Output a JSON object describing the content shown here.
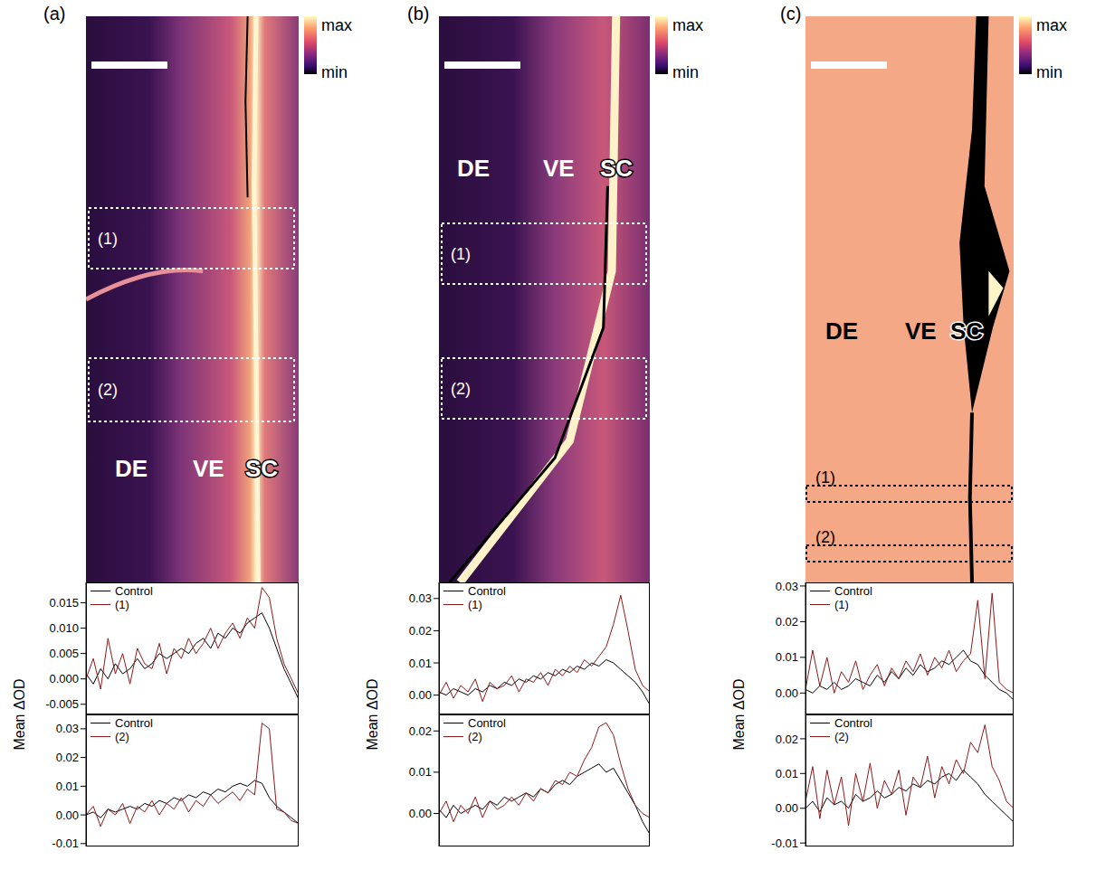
{
  "panels": [
    {
      "label": "(a)",
      "regions": [
        "DE",
        "VE",
        "SC"
      ],
      "boxes": [
        "(1)",
        "(2)"
      ],
      "colorbar": {
        "max": "max",
        "min": "min"
      },
      "y_label": "Mean ΔOD"
    },
    {
      "label": "(b)",
      "regions": [
        "DE",
        "VE",
        "SC"
      ],
      "boxes": [
        "(1)",
        "(2)"
      ],
      "colorbar": {
        "max": "max",
        "min": "min"
      },
      "y_label": "Mean ΔOD"
    },
    {
      "label": "(c)",
      "regions": [
        "DE",
        "VE",
        "SC"
      ],
      "boxes": [
        "(1)",
        "(2)"
      ],
      "colorbar": {
        "max": "max",
        "min": "min"
      },
      "y_label": "Mean ΔOD"
    }
  ],
  "chart_data": [
    {
      "type": "line",
      "x": [
        0,
        1,
        2,
        3,
        4,
        5,
        6,
        7,
        8,
        9,
        10,
        11,
        12,
        13,
        14,
        15,
        16,
        17,
        18,
        19,
        20,
        21,
        22,
        23,
        24,
        25,
        26,
        27,
        28,
        29
      ],
      "xlim": [
        0,
        29
      ],
      "ylim": [
        -0.007,
        0.019
      ],
      "yticks": [
        0.015,
        {
          "value": 0.01,
          "label": "0.010"
        },
        0.005,
        {
          "value": 0,
          "label": "0.000"
        },
        -0.005
      ],
      "tick_labels": "y",
      "legend": "upper left",
      "series": [
        {
          "name": "Control",
          "color": "#000000",
          "values": [
            0.001,
            -0.001,
            0.002,
            0.0,
            0.003,
            0.001,
            0.002,
            0.004,
            0.002,
            0.003,
            0.005,
            0.004,
            0.005,
            0.006,
            0.005,
            0.007,
            0.008,
            0.006,
            0.009,
            0.008,
            0.01,
            0.009,
            0.011,
            0.012,
            0.013,
            0.01,
            0.006,
            0.002,
            -0.001,
            -0.004
          ]
        },
        {
          "name": "(1)",
          "color": "#8b1a1a",
          "values": [
            0.0,
            0.004,
            -0.002,
            0.008,
            0.001,
            0.005,
            -0.001,
            0.006,
            0.003,
            0.002,
            0.007,
            0.001,
            0.006,
            0.004,
            0.008,
            0.005,
            0.007,
            0.01,
            0.006,
            0.009,
            0.011,
            0.008,
            0.012,
            0.01,
            0.018,
            0.016,
            0.008,
            0.003,
            0.0,
            -0.003
          ]
        }
      ]
    },
    {
      "type": "line",
      "x": [
        0,
        1,
        2,
        3,
        4,
        5,
        6,
        7,
        8,
        9,
        10,
        11,
        12,
        13,
        14,
        15,
        16,
        17,
        18,
        19,
        20,
        21,
        22,
        23,
        24,
        25,
        26,
        27,
        28,
        29
      ],
      "xlim": [
        0,
        29
      ],
      "ylim": [
        -0.011,
        0.035
      ],
      "yticks": [
        0.03,
        0.02,
        0.01,
        {
          "value": 0,
          "label": "0.00"
        },
        -0.01
      ],
      "tick_labels": "y",
      "legend": "upper left",
      "series": [
        {
          "name": "Control",
          "color": "#000000",
          "values": [
            0.0,
            0.001,
            -0.001,
            0.002,
            0.001,
            0.002,
            0.003,
            0.002,
            0.004,
            0.003,
            0.005,
            0.004,
            0.006,
            0.005,
            0.007,
            0.006,
            0.008,
            0.007,
            0.009,
            0.008,
            0.01,
            0.011,
            0.01,
            0.012,
            0.011,
            0.006,
            0.003,
            0.001,
            -0.001,
            -0.003
          ]
        },
        {
          "name": "(2)",
          "color": "#8b1a1a",
          "values": [
            0.0,
            0.003,
            -0.004,
            0.002,
            0.0,
            0.004,
            -0.003,
            0.003,
            0.001,
            0.005,
            0.0,
            0.004,
            0.002,
            0.006,
            0.001,
            0.005,
            0.003,
            0.007,
            0.004,
            0.006,
            0.008,
            0.005,
            0.009,
            0.007,
            0.032,
            0.03,
            0.002,
            0.001,
            -0.002,
            -0.003
          ]
        }
      ]
    },
    {
      "type": "line",
      "x": [
        0,
        1,
        2,
        3,
        4,
        5,
        6,
        7,
        8,
        9,
        10,
        11,
        12,
        13,
        14,
        15,
        16,
        17,
        18,
        19,
        20,
        21,
        22,
        23,
        24,
        25,
        26,
        27,
        28,
        29
      ],
      "xlim": [
        0,
        29
      ],
      "ylim": [
        -0.006,
        0.035
      ],
      "yticks": [
        0.03,
        0.02,
        0.01,
        {
          "value": 0,
          "label": "0.00"
        }
      ],
      "tick_labels": "y",
      "legend": "upper left",
      "series": [
        {
          "name": "Control",
          "color": "#000000",
          "values": [
            0.001,
            0.0,
            0.002,
            0.001,
            0.0,
            0.002,
            0.001,
            0.003,
            0.002,
            0.004,
            0.003,
            0.005,
            0.004,
            0.006,
            0.005,
            0.007,
            0.006,
            0.008,
            0.007,
            0.009,
            0.008,
            0.01,
            0.009,
            0.011,
            0.01,
            0.008,
            0.006,
            0.004,
            0.001,
            -0.003
          ]
        },
        {
          "name": "(1)",
          "color": "#8b1a1a",
          "values": [
            0.0,
            0.004,
            -0.001,
            0.003,
            0.001,
            0.005,
            -0.002,
            0.004,
            0.002,
            0.003,
            0.006,
            0.001,
            0.005,
            0.004,
            0.007,
            0.003,
            0.008,
            0.006,
            0.009,
            0.007,
            0.011,
            0.009,
            0.012,
            0.015,
            0.022,
            0.031,
            0.02,
            0.008,
            0.003,
            0.001
          ]
        }
      ]
    },
    {
      "type": "line",
      "x": [
        0,
        1,
        2,
        3,
        4,
        5,
        6,
        7,
        8,
        9,
        10,
        11,
        12,
        13,
        14,
        15,
        16,
        17,
        18,
        19,
        20,
        21,
        22,
        23,
        24,
        25,
        26,
        27,
        28,
        29
      ],
      "xlim": [
        0,
        29
      ],
      "ylim": [
        -0.008,
        0.024
      ],
      "yticks": [
        0.02,
        0.01,
        {
          "value": 0,
          "label": "0.00"
        }
      ],
      "tick_labels": "y",
      "legend": "upper left",
      "series": [
        {
          "name": "Control",
          "color": "#000000",
          "values": [
            0.001,
            -0.001,
            0.002,
            0.0,
            0.001,
            0.002,
            0.001,
            0.003,
            0.002,
            0.004,
            0.003,
            0.004,
            0.005,
            0.004,
            0.006,
            0.005,
            0.007,
            0.008,
            0.007,
            0.009,
            0.01,
            0.011,
            0.012,
            0.01,
            0.011,
            0.008,
            0.005,
            0.002,
            -0.002,
            -0.005
          ]
        },
        {
          "name": "(2)",
          "color": "#8b1a1a",
          "values": [
            0.0,
            0.003,
            -0.002,
            0.002,
            0.0,
            0.004,
            -0.001,
            0.003,
            0.001,
            0.002,
            0.004,
            0.002,
            0.005,
            0.003,
            0.006,
            0.005,
            0.008,
            0.007,
            0.01,
            0.009,
            0.013,
            0.016,
            0.021,
            0.022,
            0.019,
            0.012,
            0.006,
            0.002,
            0.0,
            -0.001
          ]
        }
      ]
    },
    {
      "type": "line",
      "x": [
        0,
        1,
        2,
        3,
        4,
        5,
        6,
        7,
        8,
        9,
        10,
        11,
        12,
        13,
        14,
        15,
        16,
        17,
        18,
        19,
        20,
        21,
        22,
        23,
        24,
        25,
        26,
        27,
        28,
        29
      ],
      "xlim": [
        0,
        29
      ],
      "ylim": [
        -0.006,
        0.031
      ],
      "yticks": [
        0.03,
        0.02,
        0.01,
        {
          "value": 0,
          "label": "0.00"
        }
      ],
      "tick_labels": "y",
      "legend": "upper left",
      "series": [
        {
          "name": "Control",
          "color": "#000000",
          "values": [
            0.001,
            0.0,
            0.002,
            0.001,
            0.003,
            0.001,
            0.002,
            0.004,
            0.003,
            0.002,
            0.005,
            0.003,
            0.006,
            0.004,
            0.007,
            0.005,
            0.008,
            0.006,
            0.007,
            0.009,
            0.008,
            0.01,
            0.012,
            0.009,
            0.008,
            0.005,
            0.003,
            0.001,
            0.0,
            -0.002
          ]
        },
        {
          "name": "(1)",
          "color": "#8b1a1a",
          "values": [
            0.001,
            0.012,
            0.002,
            0.01,
            0.0,
            0.006,
            0.003,
            0.009,
            0.001,
            0.005,
            0.008,
            0.002,
            0.007,
            0.004,
            0.009,
            0.006,
            0.011,
            0.005,
            0.01,
            0.007,
            0.012,
            0.006,
            0.009,
            0.011,
            0.026,
            0.004,
            0.028,
            0.003,
            0.001,
            0.0
          ]
        }
      ]
    },
    {
      "type": "line",
      "x": [
        0,
        1,
        2,
        3,
        4,
        5,
        6,
        7,
        8,
        9,
        10,
        11,
        12,
        13,
        14,
        15,
        16,
        17,
        18,
        19,
        20,
        21,
        22,
        23,
        24,
        25,
        26,
        27,
        28,
        29
      ],
      "xlim": [
        0,
        29
      ],
      "ylim": [
        -0.011,
        0.027
      ],
      "yticks": [
        0.02,
        0.01,
        {
          "value": 0,
          "label": "0.00"
        },
        -0.01
      ],
      "tick_labels": "y",
      "legend": "upper left",
      "series": [
        {
          "name": "Control",
          "color": "#000000",
          "values": [
            0.0,
            0.002,
            -0.001,
            0.003,
            0.001,
            0.002,
            0.0,
            0.004,
            0.002,
            0.003,
            0.005,
            0.003,
            0.004,
            0.006,
            0.005,
            0.007,
            0.006,
            0.008,
            0.007,
            0.009,
            0.01,
            0.008,
            0.011,
            0.009,
            0.007,
            0.004,
            0.002,
            0.0,
            -0.002,
            -0.004
          ]
        },
        {
          "name": "(2)",
          "color": "#8b1a1a",
          "values": [
            0.002,
            0.012,
            -0.003,
            0.011,
            0.001,
            0.009,
            -0.005,
            0.01,
            0.002,
            0.013,
            0.0,
            0.008,
            0.004,
            0.011,
            -0.002,
            0.009,
            0.006,
            0.015,
            0.003,
            0.012,
            0.007,
            0.014,
            0.01,
            0.019,
            0.016,
            0.024,
            0.012,
            0.008,
            0.002,
            0.0
          ]
        }
      ]
    }
  ]
}
